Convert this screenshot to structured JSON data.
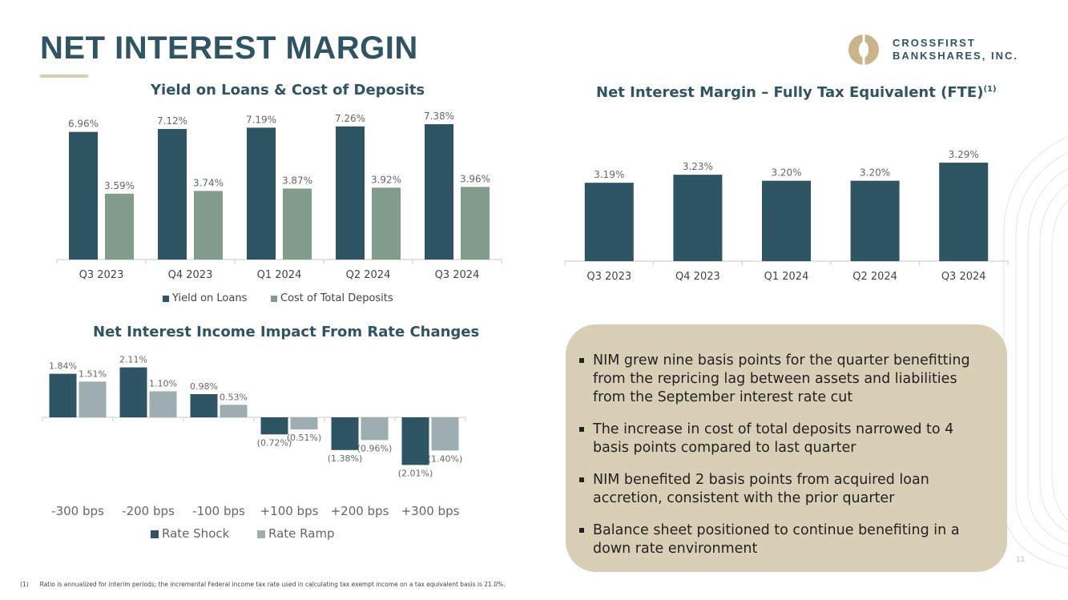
{
  "page": {
    "title": "NET INTEREST MARGIN",
    "logo_line1": "CROSSFIRST",
    "logo_line2": "BANKSHARES, INC.",
    "page_number": "11",
    "footnote_marker": "(1)",
    "footnote": "Ratio is annualized for interim periods; the incremental Federal income tax rate used in calculating tax exempt income on a tax equivalent basis is 21.0%."
  },
  "bullets": [
    "NIM grew nine basis points for the quarter benefitting from the repricing lag between assets and liabilities from the September interest rate cut",
    "The increase in cost of total deposits narrowed to 4 basis points compared to last quarter",
    "NIM benefited 2 basis points from acquired loan accretion, consistent with the prior quarter",
    "Balance sheet positioned to continue benefiting in a down rate environment"
  ],
  "colors": {
    "primary": "#2f5463",
    "secondary": "#819b8d",
    "ramp": "#9eadb2",
    "box": "#d9cfb7",
    "rule": "#d8ceb8"
  },
  "chart_data": [
    {
      "type": "bar",
      "title": "Yield on Loans & Cost of Deposits",
      "categories": [
        "Q3 2023",
        "Q4 2023",
        "Q1 2024",
        "Q2 2024",
        "Q3 2024"
      ],
      "series": [
        {
          "name": "Yield on Loans",
          "values": [
            6.96,
            7.12,
            7.19,
            7.26,
            7.38
          ],
          "labels": [
            "6.96%",
            "7.12%",
            "7.19%",
            "7.26%",
            "7.38%"
          ]
        },
        {
          "name": "Cost of Total Deposits",
          "values": [
            3.59,
            3.74,
            3.87,
            3.92,
            3.96
          ],
          "labels": [
            "3.59%",
            "3.74%",
            "3.87%",
            "3.92%",
            "3.96%"
          ]
        }
      ],
      "ylim": [
        0,
        7.6
      ],
      "legend": "bottom"
    },
    {
      "type": "bar",
      "title": "Net Interest Margin – Fully Tax Equivalent (FTE)",
      "title_sup": "(1)",
      "categories": [
        "Q3 2023",
        "Q4 2023",
        "Q1 2024",
        "Q2 2024",
        "Q3 2024"
      ],
      "series": [
        {
          "name": "NIM (FTE)",
          "values": [
            3.19,
            3.23,
            3.2,
            3.2,
            3.29
          ],
          "labels": [
            "3.19%",
            "3.23%",
            "3.20%",
            "3.20%",
            "3.29%"
          ]
        }
      ],
      "ylim": [
        2.8,
        3.35
      ]
    },
    {
      "type": "bar",
      "title": "Net Interest Income Impact From Rate Changes",
      "categories": [
        "-300 bps",
        "-200 bps",
        "-100 bps",
        "+100 bps",
        "+200 bps",
        "+300 bps"
      ],
      "series": [
        {
          "name": "Rate Shock",
          "values": [
            1.84,
            2.11,
            0.98,
            -0.72,
            -1.38,
            -2.01
          ],
          "labels": [
            "1.84%",
            "2.11%",
            "0.98%",
            "(0.72%)",
            "(1.38%)",
            "(2.01%)"
          ]
        },
        {
          "name": "Rate Ramp",
          "values": [
            1.51,
            1.1,
            0.53,
            -0.51,
            -0.96,
            -1.4
          ],
          "labels": [
            "1.51%",
            "1.10%",
            "0.53%",
            "(0.51%)",
            "(0.96%)",
            "(1.40%)"
          ]
        }
      ],
      "ylim": [
        -2.2,
        2.3
      ],
      "legend": "bottom"
    }
  ]
}
